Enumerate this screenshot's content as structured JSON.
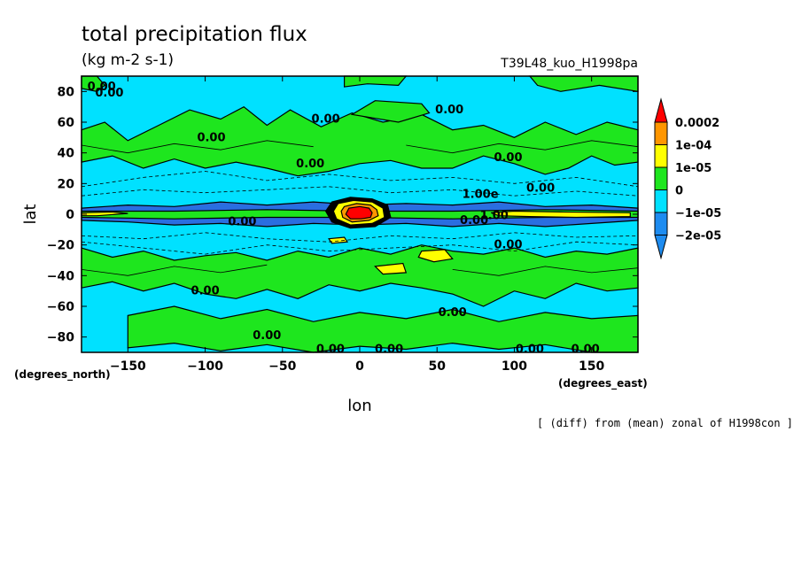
{
  "colors": {
    "neg2": "#1e8cf0",
    "neg1": "#00e1ff",
    "zero": "#1ee61e",
    "pos1": "#ffff00",
    "pos2": "#ff9600",
    "pos3": "#ff0000",
    "dark_neg": "#2a6ee0"
  },
  "chart_data": {
    "type": "contour",
    "title": "total precipitation flux",
    "units": "(kg m-2 s-1)",
    "experiment": "T39L48_kuo_H1998pa",
    "xlabel": "lon",
    "ylabel": "lat",
    "x_units": "(degrees_east)",
    "y_units": "(degrees_north)",
    "xlim": [
      -180,
      180
    ],
    "ylim": [
      -90,
      90
    ],
    "xticks": [
      -150,
      -100,
      -50,
      0,
      50,
      100,
      150
    ],
    "yticks": [
      80,
      60,
      40,
      20,
      0,
      -20,
      -40,
      -60,
      -80
    ],
    "legend": {
      "placement": "right",
      "levels": [
        "0.0002",
        "1e-04",
        "1e-05",
        "0",
        "-1e-05",
        "-2e-05"
      ]
    },
    "contour_labels": [
      {
        "text": "0.00",
        "lon": -167,
        "lat": 83
      },
      {
        "text": "0.00",
        "lon": -162,
        "lat": 79
      },
      {
        "text": "0.00",
        "lon": -22,
        "lat": 62
      },
      {
        "text": "0.00",
        "lon": 58,
        "lat": 68
      },
      {
        "text": "0.00",
        "lon": -96,
        "lat": 50
      },
      {
        "text": "0.00",
        "lon": -32,
        "lat": 33
      },
      {
        "text": "0.00",
        "lon": 96,
        "lat": 37
      },
      {
        "text": "0.00",
        "lon": 117,
        "lat": 17
      },
      {
        "text": "1.00e",
        "lon": 78,
        "lat": 13
      },
      {
        "text": "0.00",
        "lon": -76,
        "lat": -5
      },
      {
        "text": "0.00",
        "lon": 74,
        "lat": -4
      },
      {
        "text": "1.00",
        "lon": 87,
        "lat": -1
      },
      {
        "text": "0.00",
        "lon": 96,
        "lat": -20
      },
      {
        "text": "0.00",
        "lon": -100,
        "lat": -50
      },
      {
        "text": "0.00",
        "lon": 60,
        "lat": -64
      },
      {
        "text": "0.00",
        "lon": -60,
        "lat": -79
      },
      {
        "text": "0.00",
        "lon": -19,
        "lat": -133
      },
      {
        "text": "0.00",
        "lon": 19,
        "lat": -128
      },
      {
        "text": "0.00",
        "lon": 146,
        "lat": -121
      },
      {
        "text": "0.00",
        "lon": 110,
        "lat": -130
      }
    ]
  },
  "footnote": "[ (diff) from (mean) zonal of H1998con ]"
}
